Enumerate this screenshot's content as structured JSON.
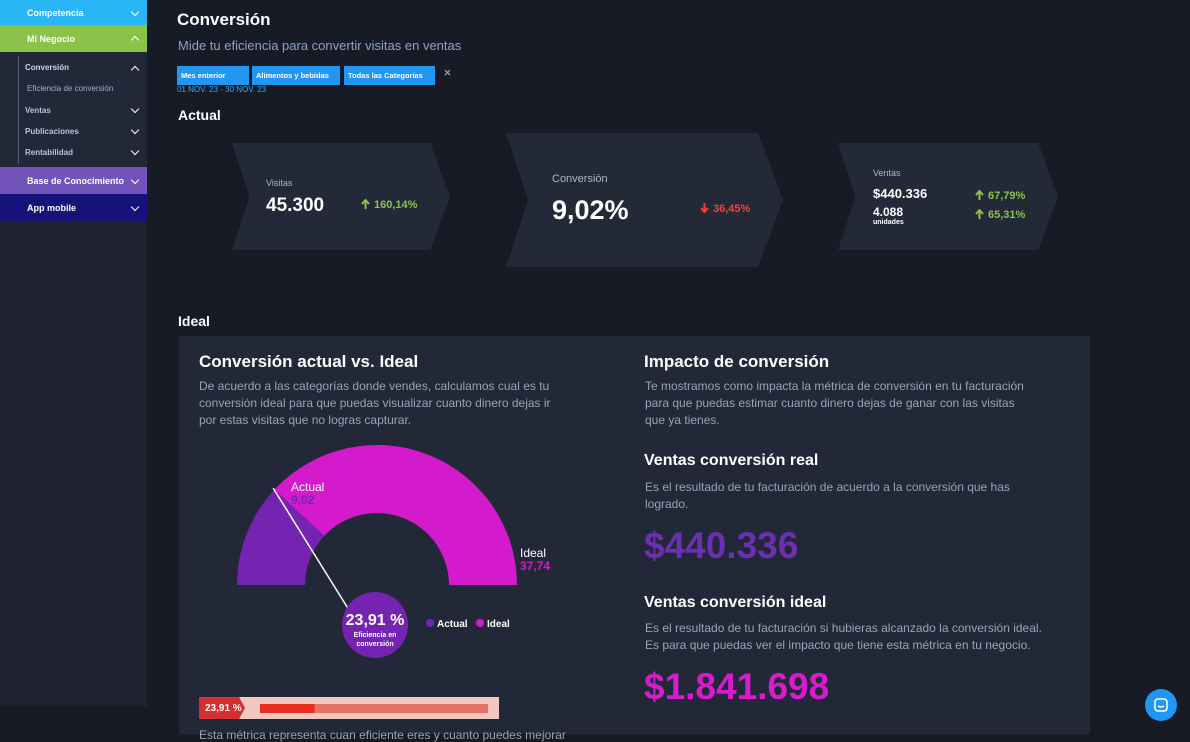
{
  "sidebar": {
    "items": [
      {
        "label": "Competencia"
      },
      {
        "label": "Mi Negocio",
        "children": [
          "Conversión",
          "Eficiencia de conversión",
          "Ventas",
          "Publicaciones",
          "Rentabilidad"
        ]
      },
      {
        "label": "Base de Conocimiento"
      },
      {
        "label": "App mobile"
      }
    ]
  },
  "header": {
    "title": "Conversión",
    "subtitle": "Mide tu eficiencia para convertir visitas en ventas",
    "filters": [
      "Mes enterior",
      "Alimentos y bebidas",
      "Todas las Categorías"
    ],
    "date_range": "01 NOV. 23 - 30 NOV. 23"
  },
  "actual": {
    "title": "Actual",
    "cards": [
      {
        "label": "Visitas",
        "value": "45.300",
        "change": "160,14%"
      },
      {
        "label": "Conversión",
        "value": "9,02%",
        "change": "36,45%"
      },
      {
        "label": "Ventas",
        "value": "$440.336",
        "change": "67,79%",
        "units_value": "4.088",
        "units_label": "unidades",
        "units_change": "65,31%"
      }
    ]
  },
  "ideal": {
    "title": "Ideal",
    "left": {
      "title": "Conversión actual vs. Ideal",
      "description": "De acuerdo a las categorías donde vendes, calculamos cual es tu conversión ideal para que puedas visualizar cuanto dinero dejas ir por estas visitas que no logras capturar.",
      "footer": "Esta métrica representa cuan eficiente eres y cuanto puedes mejorar"
    },
    "gauge": {
      "actual": {
        "label": "Actual",
        "value": 9.02,
        "value_label": "9,02"
      },
      "ideal": {
        "label": "Ideal",
        "value": 37.74,
        "value_label": "37,74"
      },
      "efficiency": {
        "value": 23.91,
        "label": "23,91 %",
        "caption": "Eficiencia en conversión"
      }
    },
    "right": {
      "title": "Impacto de conversión",
      "description": "Te mostramos como impacta la métrica de conversión en tu facturación para que puedas estimar cuanto dinero dejas de ganar con las visitas que ya tienes.",
      "real": {
        "title": "Ventas conversión real",
        "description": "Es el resultado de tu facturación de acuerdo a la conversión que has logrado.",
        "value": "$440.336"
      },
      "ideal": {
        "title": "Ventas conversión ideal",
        "description": "Es el resultado de tu facturación si hubieras alcanzado la conversión ideal. Es para que puedas ver el impacto que tiene esta métrica en tu negocio.",
        "value": "$1.841.698"
      }
    }
  }
}
